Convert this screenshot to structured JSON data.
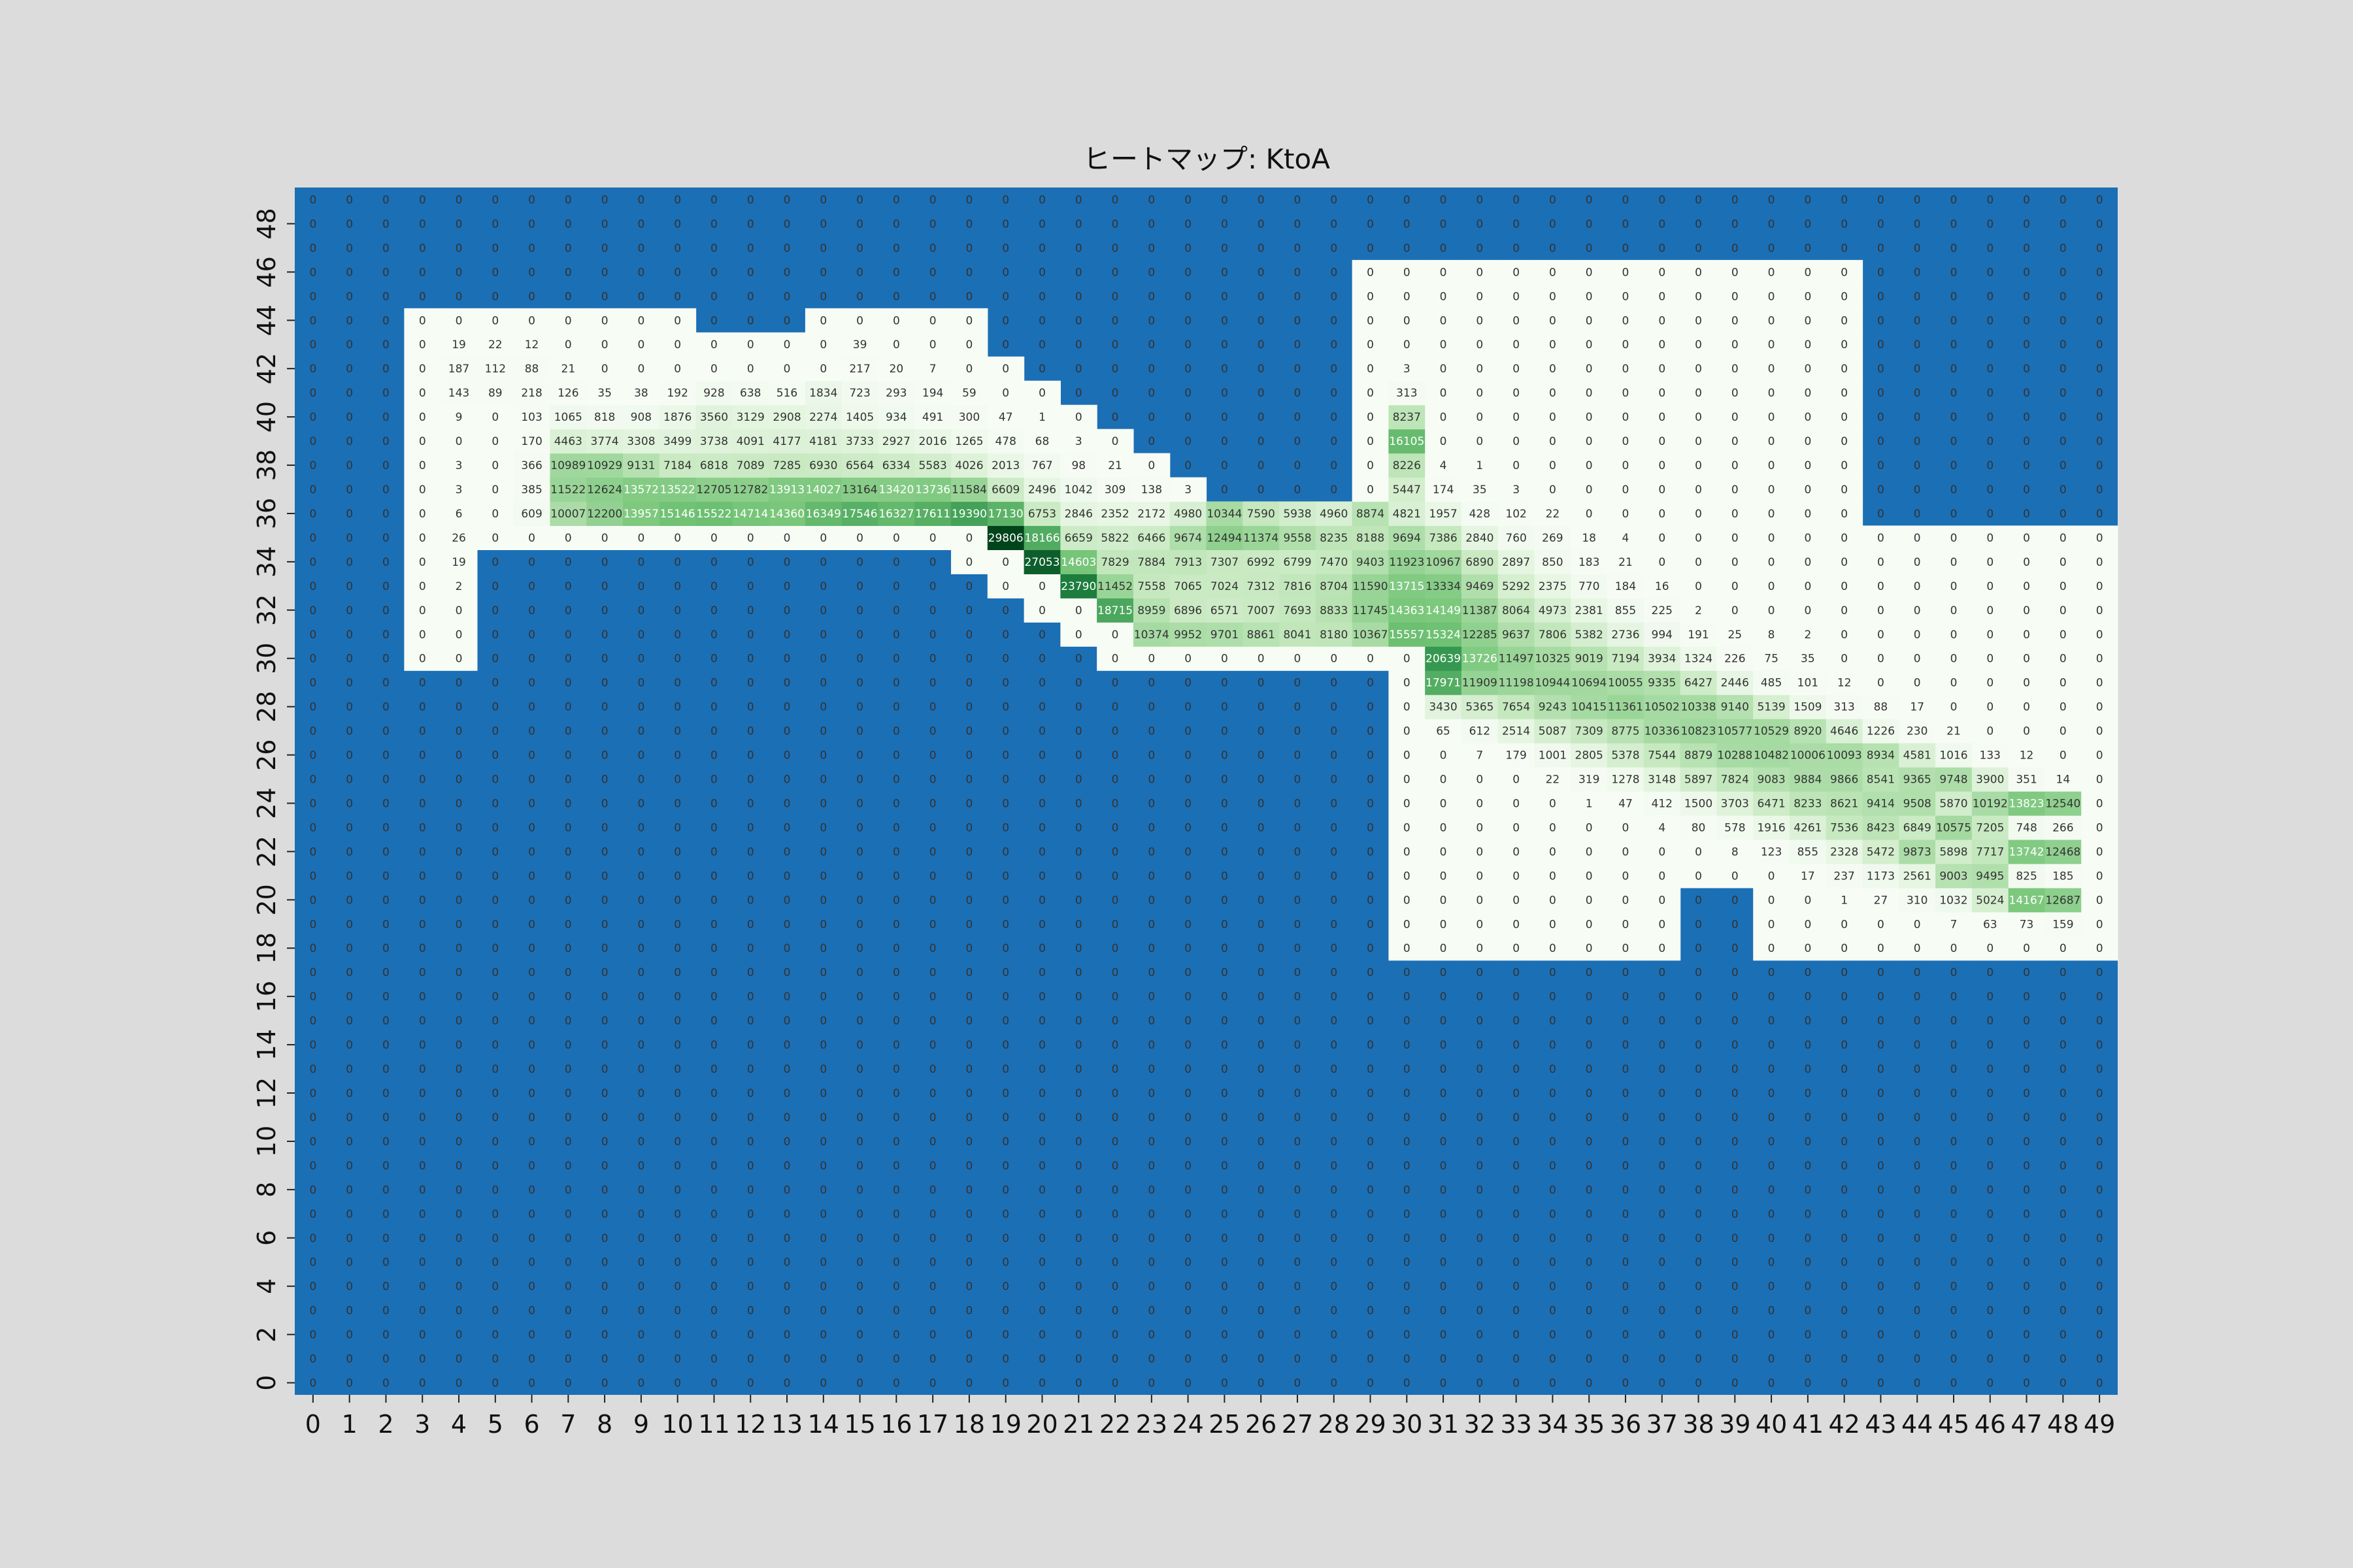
{
  "chart_data": {
    "type": "heatmap",
    "title": "ヒートマップ: KtoA",
    "x_ticks": [
      "0",
      "1",
      "2",
      "3",
      "4",
      "5",
      "6",
      "7",
      "8",
      "9",
      "10",
      "11",
      "12",
      "13",
      "14",
      "15",
      "16",
      "17",
      "18",
      "19",
      "20",
      "21",
      "22",
      "23",
      "24",
      "25",
      "26",
      "27",
      "28",
      "29",
      "30",
      "31",
      "32",
      "33",
      "34",
      "35",
      "36",
      "37",
      "38",
      "39",
      "40",
      "41",
      "42",
      "43",
      "44",
      "45",
      "46",
      "47",
      "48",
      "49"
    ],
    "y_ticks": [
      "0",
      "2",
      "4",
      "6",
      "8",
      "10",
      "12",
      "14",
      "16",
      "18",
      "20",
      "22",
      "24",
      "26",
      "28",
      "30",
      "32",
      "34",
      "36",
      "38",
      "40",
      "42",
      "44",
      "46",
      "48"
    ],
    "xlim": [
      0,
      49
    ],
    "ylim": [
      0,
      49
    ],
    "colors": {
      "masked": "#1b6fb5",
      "low": "#f7fcf5",
      "mid": "#74c476",
      "high": "#00441b"
    },
    "white_regions": [
      {
        "x": [
          29,
          42
        ],
        "y": [
          36,
          46
        ]
      },
      {
        "x": [
          29,
          49
        ],
        "y": [
          30,
          35
        ]
      },
      {
        "x": [
          30,
          49
        ],
        "y": [
          18,
          29
        ]
      },
      {
        "x": [
          3,
          9
        ],
        "y": [
          36,
          44
        ]
      },
      {
        "x": [
          10,
          13
        ],
        "y": [
          36,
          43
        ]
      },
      {
        "x": [
          10,
          13
        ],
        "y": [
          42,
          43
        ]
      },
      {
        "x": [
          14,
          18
        ],
        "y": [
          36,
          44
        ]
      },
      {
        "x": [
          19,
          19
        ],
        "y": [
          36,
          42
        ]
      },
      {
        "x": [
          20,
          20
        ],
        "y": [
          36,
          41
        ]
      },
      {
        "x": [
          21,
          21
        ],
        "y": [
          36,
          40
        ]
      },
      {
        "x": [
          22,
          22
        ],
        "y": [
          36,
          39
        ]
      },
      {
        "x": [
          23,
          23
        ],
        "y": [
          36,
          38
        ]
      },
      {
        "x": [
          24,
          24
        ],
        "y": [
          36,
          37
        ]
      },
      {
        "x": [
          25,
          28
        ],
        "y": [
          36,
          36
        ]
      },
      {
        "x": [
          3,
          28
        ],
        "y": [
          35,
          35
        ]
      },
      {
        "x": [
          3,
          4
        ],
        "y": [
          30,
          34
        ]
      },
      {
        "x": [
          18,
          18
        ],
        "y": [
          34,
          34
        ]
      },
      {
        "x": [
          19,
          19
        ],
        "y": [
          33,
          34
        ]
      },
      {
        "x": [
          20,
          20
        ],
        "y": [
          32,
          34
        ]
      },
      {
        "x": [
          21,
          21
        ],
        "y": [
          31,
          34
        ]
      },
      {
        "x": [
          22,
          28
        ],
        "y": [
          30,
          34
        ]
      }
    ],
    "masked_holes": [
      {
        "x": [
          38,
          39
        ],
        "y": [
          18,
          20
        ]
      }
    ],
    "rows": {
      "44": {
        "3": 0,
        "4": 0,
        "5": 0,
        "6": 0,
        "7": 0,
        "8": 0,
        "9": 0,
        "10": 0,
        "14": 0,
        "15": 0,
        "16": 0,
        "17": 0,
        "18": 0
      },
      "43": {
        "3": 0,
        "4": 19,
        "5": 22,
        "6": 12,
        "7": 0,
        "8": 0,
        "9": 0,
        "10": 0,
        "14": 0,
        "15": 39,
        "16": 0,
        "17": 0,
        "18": 0
      },
      "42": {
        "3": 0,
        "4": 187,
        "5": 112,
        "6": 88,
        "7": 21,
        "8": 0,
        "9": 0,
        "10": 0,
        "14": 0,
        "15": 217,
        "16": 20,
        "17": 7,
        "18": 0,
        "19": 0
      },
      "41": {
        "3": 0,
        "4": 143,
        "5": 89,
        "6": 218,
        "7": 126,
        "8": 35,
        "9": 38,
        "10": 192,
        "11": 928,
        "12": 638,
        "13": 516,
        "14": 1834,
        "15": 723,
        "16": 293,
        "17": 194,
        "18": 59,
        "19": 0,
        "20": 0
      },
      "40": {
        "3": 0,
        "4": 9,
        "5": 0,
        "6": 103,
        "7": 1065,
        "8": 818,
        "9": 908,
        "10": 1876,
        "11": 3560,
        "12": 3129,
        "13": 2908,
        "14": 2274,
        "15": 1405,
        "16": 934,
        "17": 491,
        "18": 300,
        "19": 47,
        "20": 1,
        "21": 0
      },
      "39": {
        "3": 0,
        "4": 0,
        "5": 0,
        "6": 170,
        "7": 4463,
        "8": 3774,
        "9": 3308,
        "10": 3499,
        "11": 3738,
        "12": 4091,
        "13": 4177,
        "14": 4181,
        "15": 3733,
        "16": 2927,
        "17": 2016,
        "18": 1265,
        "19": 478,
        "20": 68,
        "21": 3,
        "22": 0
      },
      "38": {
        "3": 0,
        "4": 3,
        "5": 0,
        "6": 366,
        "7": 10989,
        "8": 10929,
        "9": 9131,
        "10": 7184,
        "11": 6818,
        "12": 7089,
        "13": 7285,
        "14": 6930,
        "15": 6564,
        "16": 6334,
        "17": 5583,
        "18": 4026,
        "19": 2013,
        "20": 767,
        "21": 98,
        "22": 21,
        "23": 0
      },
      "37": {
        "3": 0,
        "4": 3,
        "5": 0,
        "6": 385,
        "7": 11522,
        "8": 12624,
        "9": 13572,
        "10": 13522,
        "11": 12705,
        "12": 12782,
        "13": 13913,
        "14": 14027,
        "15": 13164,
        "16": 13420,
        "17": 13736,
        "18": 11584,
        "19": 6609,
        "20": 2496,
        "21": 1042,
        "22": 309,
        "23": 138,
        "24": 3
      },
      "36": {
        "3": 0,
        "4": 6,
        "5": 0,
        "6": 609,
        "7": 10007,
        "8": 12200,
        "9": 13957,
        "10": 15146,
        "11": 15522,
        "12": 14714,
        "13": 14360,
        "14": 16349,
        "15": 17546,
        "16": 16327,
        "17": 17611,
        "18": 19390,
        "19": 17130,
        "20": 6753,
        "21": 2846,
        "22": 2352,
        "23": 2172,
        "24": 4980,
        "25": 10344,
        "26": 7590,
        "27": 5938,
        "28": 4960
      },
      "35": {
        "3": 0,
        "4": 26,
        "5": 0,
        "6": 0,
        "7": 0,
        "8": 0,
        "9": 0,
        "10": 0,
        "11": 0,
        "12": 0,
        "13": 0,
        "14": 0,
        "15": 0,
        "16": 0,
        "17": 0,
        "18": 0,
        "19": 29806,
        "20": 18166,
        "21": 6659,
        "22": 5822,
        "23": 6466,
        "24": 9674,
        "25": 12494,
        "26": 11374,
        "27": 9558,
        "28": 8235
      },
      "34": {
        "3": 0,
        "4": 19,
        "18": 0,
        "19": 0,
        "20": 27053,
        "21": 14603,
        "22": 7829,
        "23": 7884,
        "24": 7913,
        "25": 7307,
        "26": 6992,
        "27": 6799,
        "28": 7470
      },
      "33": {
        "3": 0,
        "4": 2,
        "19": 0,
        "20": 0,
        "21": 23790,
        "22": 11452,
        "23": 7558,
        "24": 7065,
        "25": 7024,
        "26": 7312,
        "27": 7816,
        "28": 8704
      },
      "32": {
        "3": 0,
        "4": 0,
        "20": 0,
        "21": 0,
        "22": 18715,
        "23": 8959,
        "24": 6896,
        "25": 6571,
        "26": 7007,
        "27": 7693,
        "28": 8833
      },
      "31": {
        "3": 0,
        "4": 0,
        "21": 0,
        "22": 0,
        "23": 10374,
        "24": 9952,
        "25": 9701,
        "26": 8861,
        "27": 8041,
        "28": 8180
      },
      "30": {
        "3": 0,
        "4": 0,
        "22": 0,
        "23": 0,
        "24": 0,
        "25": 0,
        "26": 0,
        "27": 0,
        "28": 0
      },
      "46": {
        "29": 0,
        "30": 0,
        "31": 0,
        "32": 0,
        "33": 0,
        "34": 0,
        "35": 0,
        "36": 0,
        "37": 0,
        "38": 0,
        "39": 0,
        "40": 0,
        "41": 0,
        "42": 0
      },
      "45": {
        "29": 0,
        "30": 0,
        "31": 0,
        "32": 0,
        "33": 0,
        "34": 0,
        "35": 0,
        "36": 0,
        "37": 0,
        "38": 0,
        "39": 0,
        "40": 0,
        "41": 0,
        "42": 0
      },
      "44b": {
        "29": 0,
        "30": 0,
        "31": 0,
        "32": 0,
        "33": 0,
        "34": 0,
        "35": 0,
        "36": 0,
        "37": 0,
        "38": 0,
        "39": 0,
        "40": 0,
        "41": 0,
        "42": 0
      },
      "43b": {
        "29": 0,
        "30": 0,
        "31": 0,
        "32": 0,
        "33": 0,
        "34": 0,
        "35": 0,
        "36": 0,
        "37": 0,
        "38": 0,
        "39": 0,
        "40": 0,
        "41": 0,
        "42": 0
      },
      "42b": {
        "29": 0,
        "30": 3,
        "31": 0,
        "32": 0,
        "33": 0,
        "34": 0,
        "35": 0,
        "36": 0,
        "37": 0,
        "38": 0,
        "39": 0,
        "40": 0,
        "41": 0,
        "42": 0
      },
      "41b": {
        "29": 0,
        "30": 313,
        "31": 0,
        "32": 0,
        "33": 0,
        "34": 0,
        "35": 0,
        "36": 0,
        "37": 0,
        "38": 0,
        "39": 0,
        "40": 0,
        "41": 0,
        "42": 0
      },
      "40b": {
        "29": 0,
        "30": 8237,
        "31": 0,
        "32": 0,
        "33": 0,
        "34": 0,
        "35": 0,
        "36": 0,
        "37": 0,
        "38": 0,
        "39": 0,
        "40": 0,
        "41": 0,
        "42": 0
      },
      "39b": {
        "29": 0,
        "30": 16105,
        "31": 0,
        "32": 0,
        "33": 0,
        "34": 0,
        "35": 0,
        "36": 0,
        "37": 0,
        "38": 0,
        "39": 0,
        "40": 0,
        "41": 0,
        "42": 0
      },
      "38b": {
        "29": 0,
        "30": 8226,
        "31": 4,
        "32": 1,
        "33": 0,
        "34": 0,
        "35": 0,
        "36": 0,
        "37": 0,
        "38": 0,
        "39": 0,
        "40": 0,
        "41": 0,
        "42": 0
      },
      "37b": {
        "29": 0,
        "30": 5447,
        "31": 174,
        "32": 35,
        "33": 3,
        "34": 0,
        "35": 0,
        "36": 0,
        "37": 0,
        "38": 0,
        "39": 0,
        "40": 0,
        "41": 0,
        "42": 0
      },
      "36b": {
        "29": 8874,
        "30": 4821,
        "31": 1957,
        "32": 428,
        "33": 102,
        "34": 22,
        "35": 0,
        "36": 0,
        "37": 0,
        "38": 0,
        "39": 0,
        "40": 0,
        "41": 0,
        "42": 0
      },
      "35b": {
        "29": 8188,
        "30": 9694,
        "31": 7386,
        "32": 2840,
        "33": 760,
        "34": 269,
        "35": 18,
        "36": 4,
        "37": 0,
        "38": 0,
        "39": 0,
        "40": 0,
        "41": 0,
        "42": 0,
        "43": 0,
        "44": 0,
        "45": 0,
        "46": 0,
        "47": 0,
        "48": 0,
        "49": 0
      },
      "34b": {
        "29": 9403,
        "30": 11923,
        "31": 10967,
        "32": 6890,
        "33": 2897,
        "34": 850,
        "35": 183,
        "36": 21,
        "37": 0,
        "38": 0,
        "39": 0,
        "40": 0,
        "41": 0,
        "42": 0,
        "43": 0,
        "44": 0,
        "45": 0,
        "46": 0,
        "47": 0,
        "48": 0,
        "49": 0
      },
      "33b": {
        "29": 11590,
        "30": 13715,
        "31": 13334,
        "32": 9469,
        "33": 5292,
        "34": 2375,
        "35": 770,
        "36": 184,
        "37": 16,
        "38": 0,
        "39": 0,
        "40": 0,
        "41": 0,
        "42": 0,
        "43": 0,
        "44": 0,
        "45": 0,
        "46": 0,
        "47": 0,
        "48": 0,
        "49": 0
      },
      "32b": {
        "29": 11745,
        "30": 14363,
        "31": 14149,
        "32": 11387,
        "33": 8064,
        "34": 4973,
        "35": 2381,
        "36": 855,
        "37": 225,
        "38": 2,
        "39": 0,
        "40": 0,
        "41": 0,
        "42": 0,
        "43": 0,
        "44": 0,
        "45": 0,
        "46": 0,
        "47": 0,
        "48": 0,
        "49": 0
      },
      "31b": {
        "29": 10367,
        "30": 15557,
        "31": 15324,
        "32": 12285,
        "33": 9637,
        "34": 7806,
        "35": 5382,
        "36": 2736,
        "37": 994,
        "38": 191,
        "39": 25,
        "40": 8,
        "41": 2,
        "42": 0,
        "43": 0,
        "44": 0,
        "45": 0,
        "46": 0,
        "47": 0,
        "48": 0,
        "49": 0
      },
      "30b": {
        "29": 0,
        "30": 0,
        "31": 20639,
        "32": 13726,
        "33": 11497,
        "34": 10325,
        "35": 9019,
        "36": 7194,
        "37": 3934,
        "38": 1324,
        "39": 226,
        "40": 75,
        "41": 35,
        "42": 0,
        "43": 0,
        "44": 0,
        "45": 0,
        "46": 0,
        "47": 0,
        "48": 0,
        "49": 0
      },
      "29": {
        "30": 0,
        "31": 17971,
        "32": 11909,
        "33": 11198,
        "34": 10944,
        "35": 10694,
        "36": 10055,
        "37": 9335,
        "38": 6427,
        "39": 2446,
        "40": 485,
        "41": 101,
        "42": 12,
        "43": 0,
        "44": 0,
        "45": 0,
        "46": 0,
        "47": 0,
        "48": 0,
        "49": 0
      },
      "28": {
        "30": 0,
        "31": 3430,
        "32": 5365,
        "33": 7654,
        "34": 9243,
        "35": 10415,
        "36": 11361,
        "37": 10502,
        "38": 10338,
        "39": 9140,
        "40": 5139,
        "41": 1509,
        "42": 313,
        "43": 88,
        "44": 17,
        "45": 0,
        "46": 0,
        "47": 0,
        "48": 0,
        "49": 0
      },
      "27": {
        "30": 0,
        "31": 65,
        "32": 612,
        "33": 2514,
        "34": 5087,
        "35": 7309,
        "36": 8775,
        "37": 10336,
        "38": 10823,
        "39": 10577,
        "40": 10529,
        "41": 8920,
        "42": 4646,
        "43": 1226,
        "44": 230,
        "45": 21,
        "46": 0,
        "47": 0,
        "48": 0,
        "49": 0
      },
      "26": {
        "30": 0,
        "31": 0,
        "32": 7,
        "33": 179,
        "34": 1001,
        "35": 2805,
        "36": 5378,
        "37": 7544,
        "38": 8879,
        "39": 10288,
        "40": 10482,
        "41": 10006,
        "42": 10093,
        "43": 8934,
        "44": 4581,
        "45": 1016,
        "46": 133,
        "47": 12,
        "48": 0,
        "49": 0
      },
      "25": {
        "30": 0,
        "31": 0,
        "32": 0,
        "33": 0,
        "34": 22,
        "35": 319,
        "36": 1278,
        "37": 3148,
        "38": 5897,
        "39": 7824,
        "40": 9083,
        "41": 9884,
        "42": 9866,
        "43": 8541,
        "44": 9365,
        "45": 9748,
        "46": 3900,
        "47": 351,
        "48": 14
      },
      "24": {
        "30": 0,
        "31": 0,
        "32": 0,
        "33": 0,
        "34": 0,
        "35": 1,
        "36": 47,
        "37": 412,
        "38": 1500,
        "39": 3703,
        "40": 6471,
        "41": 8233,
        "42": 8621,
        "43": 9414,
        "44": 9508,
        "45": 5870,
        "46": 10192,
        "47": 13823,
        "48": 12540
      },
      "23": {
        "30": 0,
        "31": 0,
        "32": 0,
        "33": 0,
        "34": 0,
        "35": 0,
        "36": 0,
        "37": 4,
        "38": 80,
        "39": 578,
        "40": 1916,
        "41": 4261,
        "42": 7536,
        "43": 8423,
        "44": 6849,
        "45": 10575,
        "46": 7205,
        "47": 748,
        "48": 266
      },
      "22": {
        "30": 0,
        "31": 0,
        "32": 0,
        "33": 0,
        "34": 0,
        "35": 0,
        "36": 0,
        "37": 0,
        "38": 0,
        "39": 8,
        "40": 123,
        "41": 855,
        "42": 2328,
        "43": 5472,
        "44": 9873,
        "45": 5898,
        "46": 7717,
        "47": 13742,
        "48": 12468
      },
      "21": {
        "30": 0,
        "31": 0,
        "32": 0,
        "33": 0,
        "34": 0,
        "35": 0,
        "36": 0,
        "37": 0,
        "38": 0,
        "39": 0,
        "40": 0,
        "41": 17,
        "42": 237,
        "43": 1173,
        "44": 2561,
        "45": 9003,
        "46": 9495,
        "47": 825,
        "48": 185
      },
      "20": {
        "30": 0,
        "31": 0,
        "32": 0,
        "33": 0,
        "34": 0,
        "35": 0,
        "36": 0,
        "37": 0,
        "40": 0,
        "41": 0,
        "42": 1,
        "43": 27,
        "44": 310,
        "45": 1032,
        "46": 5024,
        "47": 14167,
        "48": 12687
      },
      "19": {
        "30": 0,
        "31": 0,
        "32": 0,
        "33": 0,
        "34": 0,
        "35": 0,
        "36": 0,
        "37": 0,
        "40": 0,
        "41": 0,
        "42": 0,
        "43": 0,
        "44": 0,
        "45": 7,
        "46": 63,
        "47": 73,
        "48": 159
      },
      "18": {
        "30": 0,
        "31": 0,
        "32": 0,
        "33": 0,
        "34": 0,
        "35": 0,
        "36": 0,
        "37": 0,
        "40": 0,
        "41": 0,
        "42": 0,
        "43": 0,
        "44": 0,
        "45": 0,
        "46": 0,
        "47": 0,
        "48": 0
      }
    }
  }
}
